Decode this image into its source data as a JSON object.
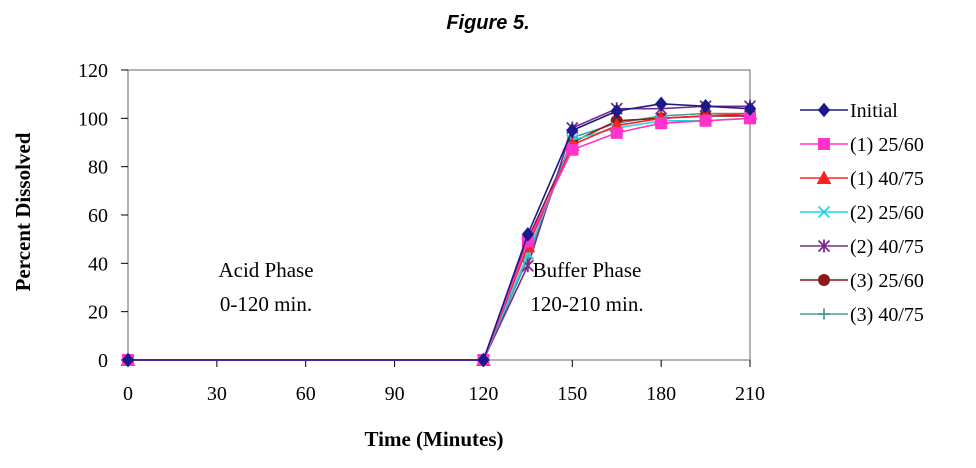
{
  "figure_title": "Figure 5.",
  "chart_data": {
    "type": "line",
    "title": "Figure 5.",
    "xlabel": "Time (Minutes)",
    "ylabel": "Percent Dissolved",
    "xlim": [
      0,
      210
    ],
    "ylim": [
      0,
      120
    ],
    "x_ticks": [
      0,
      30,
      60,
      90,
      120,
      150,
      180,
      210
    ],
    "y_ticks": [
      0,
      20,
      40,
      60,
      80,
      100,
      120
    ],
    "x": [
      0,
      120,
      135,
      150,
      165,
      180,
      195,
      210
    ],
    "grid": false,
    "legend_position": "right",
    "annotations": [
      {
        "lines": [
          "Acid Phase",
          "0-120 min."
        ]
      },
      {
        "lines": [
          "Buffer Phase",
          "120-210 min."
        ]
      }
    ],
    "series": [
      {
        "name": "Initial",
        "color": "#1a1a8c",
        "marker": "diamond",
        "values": [
          0,
          0,
          52,
          95,
          103,
          106,
          105,
          104
        ]
      },
      {
        "name": "(1) 25/60",
        "color": "#ff33cc",
        "marker": "square",
        "values": [
          0,
          0,
          49,
          87,
          94,
          98,
          99,
          100
        ]
      },
      {
        "name": " (1) 40/75",
        "color": "#ff2020",
        "marker": "triangle",
        "values": [
          0,
          0,
          47,
          89,
          97,
          100,
          101,
          102
        ]
      },
      {
        "name": "(2) 25/60",
        "color": "#22d4e6",
        "marker": "x",
        "values": [
          0,
          0,
          44,
          91,
          96,
          99,
          99,
          100
        ]
      },
      {
        "name": "(2) 40/75",
        "color": "#7a2a8c",
        "marker": "star",
        "values": [
          0,
          0,
          39,
          96,
          104,
          104,
          105,
          105
        ]
      },
      {
        "name": "(3) 25/60",
        "color": "#8b1a1a",
        "marker": "circle",
        "values": [
          0,
          0,
          50,
          90,
          99,
          100,
          101,
          101
        ]
      },
      {
        "name": "(3) 40/75",
        "color": "#4a9a9a",
        "marker": "plus",
        "values": [
          0,
          0,
          42,
          92,
          98,
          101,
          102,
          102
        ]
      }
    ]
  }
}
